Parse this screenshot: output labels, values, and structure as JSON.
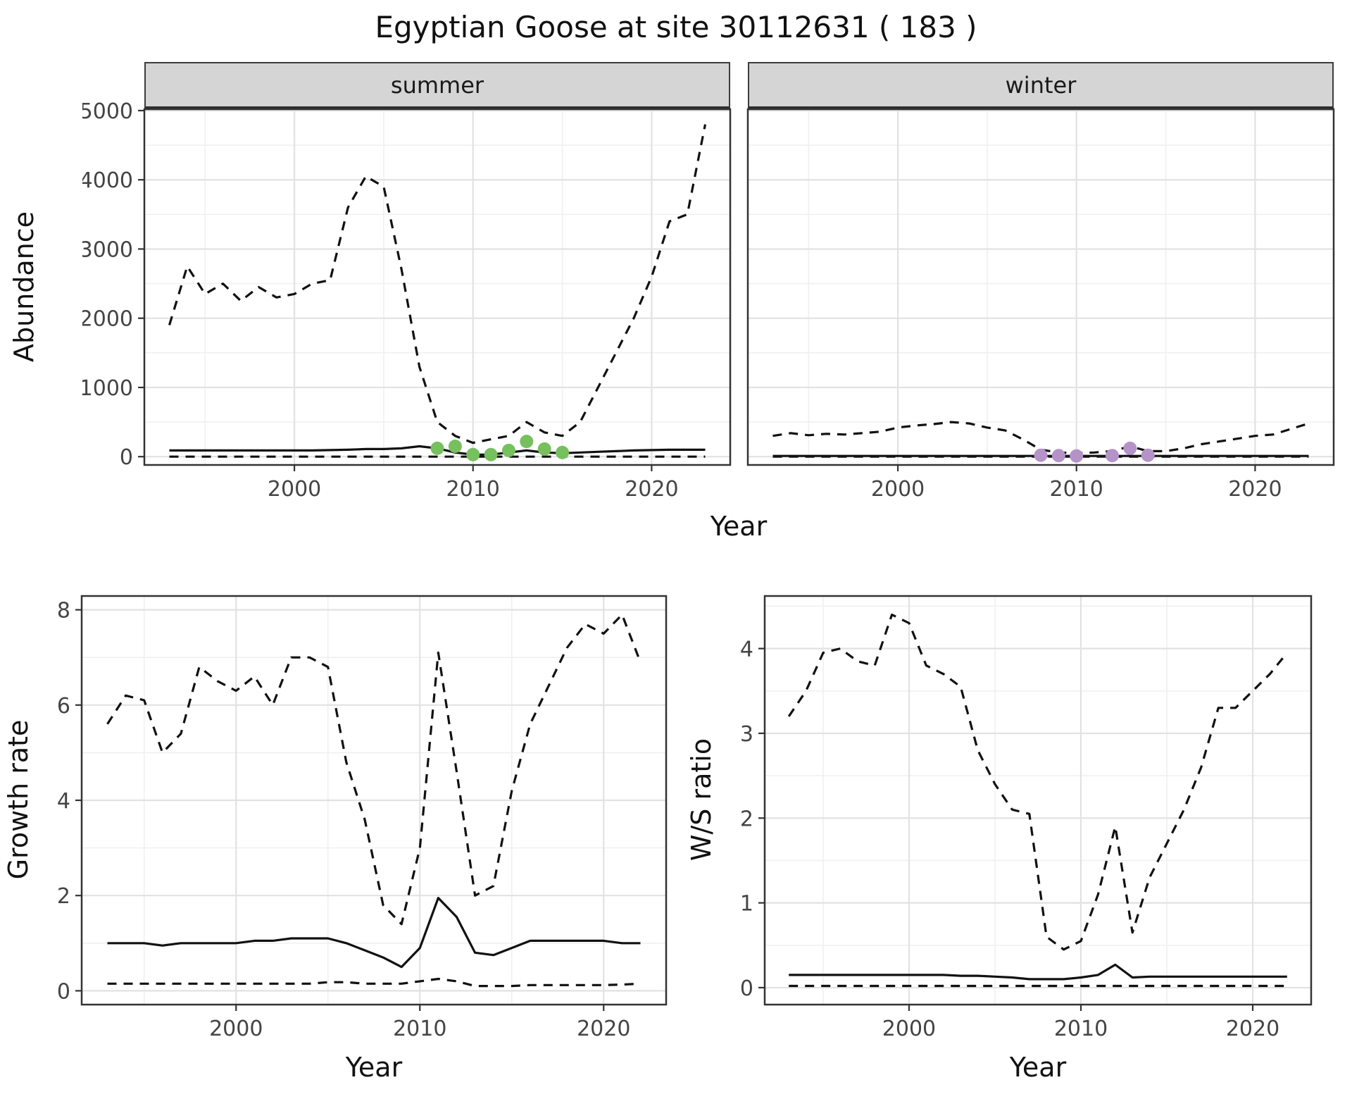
{
  "title": "Egyptian Goose at site 30112631 ( 183 )",
  "colors": {
    "summer_points": "#76c05e",
    "winter_points": "#b592c8",
    "line": "#111111",
    "strip_background": "#d5d5d5",
    "grid_major": "#e2e2e2",
    "grid_minor": "#f0f0f0"
  },
  "chart_data": [
    {
      "id": "abundance_summer",
      "type": "line",
      "facet": "summer",
      "xlabel": "Year",
      "ylabel": "Abundance",
      "xlim": [
        1991.6,
        2024.4
      ],
      "ylim": [
        -120,
        5020
      ],
      "xticks": [
        2000,
        2010,
        2020
      ],
      "yticks": [
        0,
        1000,
        2000,
        3000,
        4000,
        5000
      ],
      "grid": true,
      "x": [
        1993,
        1994,
        1995,
        1996,
        1997,
        1998,
        1999,
        2000,
        2001,
        2002,
        2003,
        2004,
        2005,
        2006,
        2007,
        2008,
        2009,
        2010,
        2011,
        2012,
        2013,
        2014,
        2015,
        2016,
        2017,
        2018,
        2019,
        2020,
        2021,
        2022,
        2023
      ],
      "series": [
        {
          "name": "upper_95ci",
          "style": "dashed",
          "values": [
            1900,
            2750,
            2350,
            2500,
            2250,
            2450,
            2300,
            2350,
            2500,
            2550,
            3600,
            4050,
            3900,
            2700,
            1300,
            500,
            300,
            200,
            250,
            300,
            500,
            350,
            300,
            500,
            1000,
            1500,
            2000,
            2600,
            3400,
            3500,
            4800
          ]
        },
        {
          "name": "estimate",
          "style": "solid",
          "values": [
            90,
            90,
            90,
            90,
            90,
            90,
            90,
            90,
            90,
            95,
            100,
            110,
            110,
            120,
            150,
            120,
            60,
            30,
            30,
            60,
            90,
            60,
            50,
            60,
            70,
            80,
            90,
            95,
            100,
            100,
            100
          ]
        },
        {
          "name": "lower_95ci",
          "style": "dashed",
          "values": [
            0,
            0,
            0,
            0,
            0,
            0,
            0,
            0,
            0,
            0,
            0,
            0,
            0,
            0,
            0,
            0,
            0,
            0,
            0,
            0,
            0,
            0,
            0,
            0,
            0,
            0,
            0,
            0,
            0,
            0,
            0
          ]
        }
      ],
      "points": {
        "name": "observed_summer_counts",
        "color": "#76c05e",
        "x": [
          2008,
          2009,
          2010,
          2011,
          2012,
          2013,
          2014,
          2015
        ],
        "y": [
          120,
          150,
          30,
          30,
          90,
          220,
          110,
          60
        ]
      }
    },
    {
      "id": "abundance_winter",
      "type": "line",
      "facet": "winter",
      "xlabel": "Year",
      "ylabel": "Abundance",
      "xlim": [
        1991.6,
        2024.4
      ],
      "ylim": [
        -120,
        5020
      ],
      "xticks": [
        2000,
        2010,
        2020
      ],
      "yticks": [
        0,
        1000,
        2000,
        3000,
        4000,
        5000
      ],
      "grid": true,
      "x": [
        1993,
        1994,
        1995,
        1996,
        1997,
        1998,
        1999,
        2000,
        2001,
        2002,
        2003,
        2004,
        2005,
        2006,
        2007,
        2008,
        2009,
        2010,
        2011,
        2012,
        2013,
        2014,
        2015,
        2016,
        2017,
        2018,
        2019,
        2020,
        2021,
        2022,
        2023
      ],
      "series": [
        {
          "name": "upper_95ci",
          "style": "dashed",
          "values": [
            300,
            340,
            310,
            330,
            320,
            340,
            360,
            420,
            450,
            470,
            500,
            480,
            420,
            380,
            250,
            100,
            60,
            50,
            60,
            80,
            150,
            80,
            80,
            120,
            180,
            220,
            260,
            300,
            320,
            400,
            480
          ]
        },
        {
          "name": "estimate",
          "style": "solid",
          "values": [
            10,
            10,
            10,
            10,
            10,
            10,
            10,
            10,
            10,
            10,
            10,
            10,
            10,
            10,
            10,
            10,
            10,
            10,
            10,
            10,
            10,
            10,
            10,
            10,
            10,
            10,
            10,
            10,
            10,
            10,
            10
          ]
        },
        {
          "name": "lower_95ci",
          "style": "dashed",
          "values": [
            0,
            0,
            0,
            0,
            0,
            0,
            0,
            0,
            0,
            0,
            0,
            0,
            0,
            0,
            0,
            0,
            0,
            0,
            0,
            0,
            0,
            0,
            0,
            0,
            0,
            0,
            0,
            0,
            0,
            0,
            0
          ]
        }
      ],
      "points": {
        "name": "observed_winter_counts",
        "color": "#b592c8",
        "x": [
          2008,
          2009,
          2010,
          2012,
          2013,
          2014
        ],
        "y": [
          20,
          15,
          10,
          15,
          120,
          20
        ]
      }
    },
    {
      "id": "growth_rate",
      "type": "line",
      "xlabel": "Year",
      "ylabel": "Growth rate",
      "xlim": [
        1991.6,
        2023.4
      ],
      "ylim": [
        -0.29,
        8.29
      ],
      "xticks": [
        2000,
        2010,
        2020
      ],
      "yticks": [
        0,
        2,
        4,
        6,
        8
      ],
      "grid": true,
      "x": [
        1993,
        1994,
        1995,
        1996,
        1997,
        1998,
        1999,
        2000,
        2001,
        2002,
        2003,
        2004,
        2005,
        2006,
        2007,
        2008,
        2009,
        2010,
        2011,
        2012,
        2013,
        2014,
        2015,
        2016,
        2017,
        2018,
        2019,
        2020,
        2021,
        2022
      ],
      "series": [
        {
          "name": "upper_95ci",
          "style": "dashed",
          "values": [
            5.6,
            6.2,
            6.1,
            5.0,
            5.4,
            6.8,
            6.5,
            6.3,
            6.6,
            6.0,
            7.0,
            7.0,
            6.8,
            4.8,
            3.6,
            1.8,
            1.4,
            3.0,
            7.1,
            4.6,
            2.0,
            2.2,
            4.2,
            5.6,
            6.4,
            7.2,
            7.7,
            7.5,
            7.9,
            6.9
          ]
        },
        {
          "name": "estimate",
          "style": "solid",
          "values": [
            1.0,
            1.0,
            1.0,
            0.95,
            1.0,
            1.0,
            1.0,
            1.0,
            1.05,
            1.05,
            1.1,
            1.1,
            1.1,
            1.0,
            0.85,
            0.7,
            0.5,
            0.9,
            1.95,
            1.55,
            0.8,
            0.75,
            0.9,
            1.05,
            1.05,
            1.05,
            1.05,
            1.05,
            1.0,
            1.0
          ]
        },
        {
          "name": "lower_95ci",
          "style": "dashed",
          "values": [
            0.15,
            0.15,
            0.15,
            0.15,
            0.15,
            0.15,
            0.15,
            0.15,
            0.15,
            0.15,
            0.15,
            0.15,
            0.18,
            0.18,
            0.15,
            0.15,
            0.15,
            0.2,
            0.25,
            0.2,
            0.1,
            0.1,
            0.1,
            0.12,
            0.12,
            0.12,
            0.12,
            0.12,
            0.13,
            0.15
          ]
        }
      ]
    },
    {
      "id": "ws_ratio",
      "type": "line",
      "xlabel": "Year",
      "ylabel": "W/S ratio",
      "xlim": [
        1991.6,
        2023.4
      ],
      "ylim": [
        -0.2,
        4.62
      ],
      "xticks": [
        2000,
        2010,
        2020
      ],
      "yticks": [
        0,
        1,
        2,
        3,
        4
      ],
      "grid": true,
      "x": [
        1993,
        1994,
        1995,
        1996,
        1997,
        1998,
        1999,
        2000,
        2001,
        2002,
        2003,
        2004,
        2005,
        2006,
        2007,
        2008,
        2009,
        2010,
        2011,
        2012,
        2013,
        2014,
        2015,
        2016,
        2017,
        2018,
        2019,
        2020,
        2021,
        2022
      ],
      "series": [
        {
          "name": "upper_95ci",
          "style": "dashed",
          "values": [
            3.2,
            3.5,
            3.95,
            4.0,
            3.85,
            3.8,
            4.4,
            4.3,
            3.8,
            3.7,
            3.55,
            2.8,
            2.4,
            2.1,
            2.05,
            0.6,
            0.45,
            0.55,
            1.1,
            1.9,
            0.65,
            1.3,
            1.7,
            2.1,
            2.6,
            3.3,
            3.3,
            3.5,
            3.7,
            3.95
          ]
        },
        {
          "name": "estimate",
          "style": "solid",
          "values": [
            0.15,
            0.15,
            0.15,
            0.15,
            0.15,
            0.15,
            0.15,
            0.15,
            0.15,
            0.15,
            0.14,
            0.14,
            0.13,
            0.12,
            0.1,
            0.1,
            0.1,
            0.12,
            0.15,
            0.27,
            0.12,
            0.13,
            0.13,
            0.13,
            0.13,
            0.13,
            0.13,
            0.13,
            0.13,
            0.13
          ]
        },
        {
          "name": "lower_95ci",
          "style": "dashed",
          "values": [
            0.02,
            0.02,
            0.02,
            0.02,
            0.02,
            0.02,
            0.02,
            0.02,
            0.02,
            0.02,
            0.02,
            0.02,
            0.02,
            0.02,
            0.02,
            0.02,
            0.02,
            0.02,
            0.02,
            0.02,
            0.02,
            0.02,
            0.02,
            0.02,
            0.02,
            0.02,
            0.02,
            0.02,
            0.02,
            0.02
          ]
        }
      ]
    }
  ]
}
